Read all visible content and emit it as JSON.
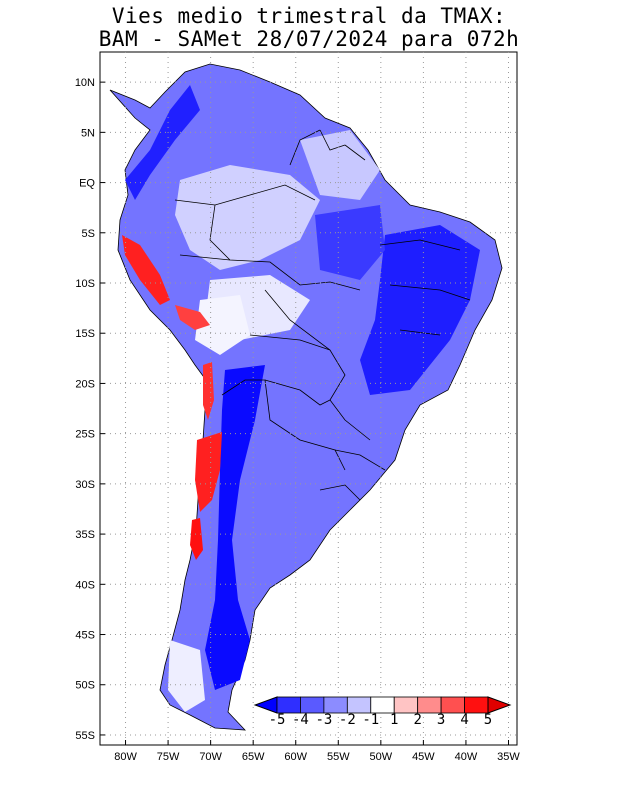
{
  "title": {
    "line1": "Vies medio trimestral da TMAX:",
    "line2": "BAM - SAMet 28/07/2024  para 072h"
  },
  "map": {
    "lon_range": [
      -83,
      -34
    ],
    "lat_range": [
      -56,
      13
    ],
    "grid": "dotted",
    "lon_ticks": [
      "80W",
      "75W",
      "70W",
      "65W",
      "60W",
      "55W",
      "50W",
      "45W",
      "40W",
      "35W"
    ],
    "lat_ticks": [
      "10N",
      "5N",
      "EQ",
      "5S",
      "10S",
      "15S",
      "20S",
      "25S",
      "30S",
      "35S",
      "40S",
      "45S",
      "50S",
      "55S"
    ]
  },
  "colorbar": {
    "labels": [
      "-5",
      "-4",
      "-3",
      "-2",
      "-1",
      "1",
      "2",
      "3",
      "4",
      "5"
    ],
    "colors": [
      "#0000ff",
      "#2f2fff",
      "#5a5aff",
      "#8c8cff",
      "#c4c4ff",
      "#ffffff",
      "#ffc4c4",
      "#ff8c8c",
      "#ff5050",
      "#ff1010",
      "#e00000"
    ],
    "placement": "bottom-right"
  },
  "colors": {
    "strong_neg": "#1a1aff",
    "mid_neg": "#6f6fff",
    "weak_neg": "#c8c8ff",
    "positive": "#ff2020",
    "boundary": "#000000",
    "grid": "#9a9a9a"
  }
}
